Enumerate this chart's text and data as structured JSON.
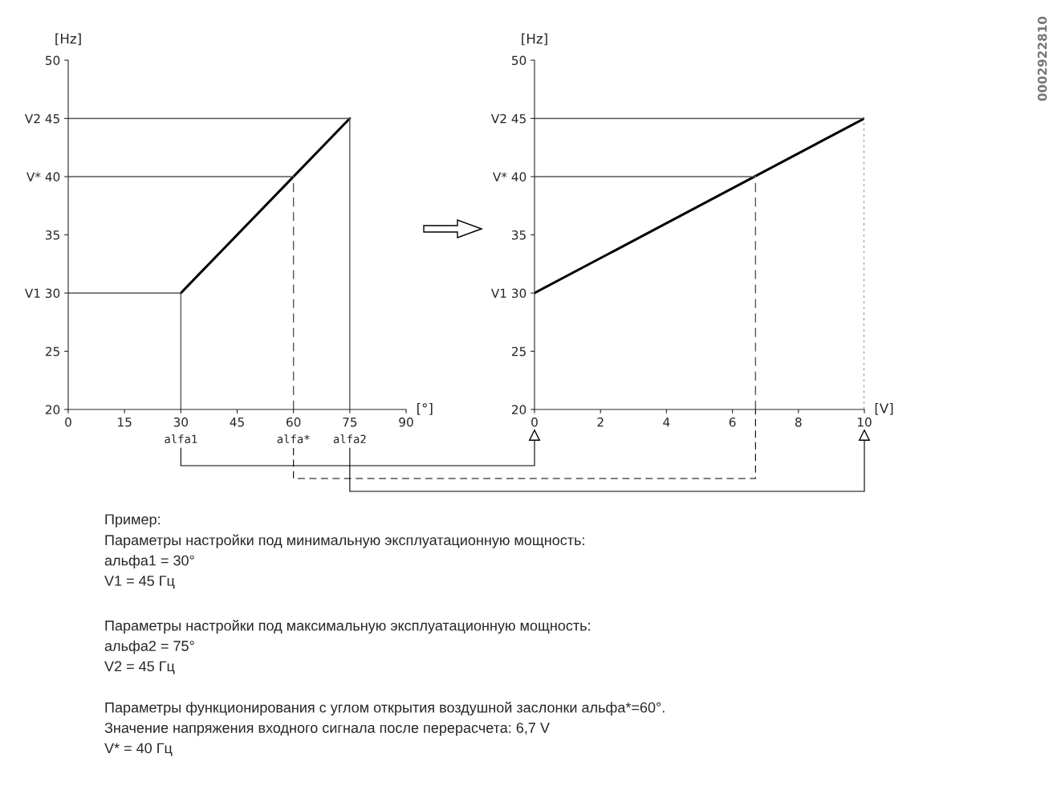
{
  "chart_data": [
    {
      "type": "line",
      "xlabel": "[°]",
      "ylabel": "[Hz]",
      "xlim": [
        0,
        90
      ],
      "ylim": [
        20,
        50
      ],
      "xticks": [
        0,
        15,
        30,
        45,
        60,
        75,
        90
      ],
      "yticks": [
        20,
        25,
        {
          "value": 30,
          "label": "V1 30"
        },
        35,
        {
          "value": 40,
          "label": "V* 40"
        },
        {
          "value": 45,
          "label": "V2 45"
        },
        50
      ],
      "series": [
        {
          "color": "#000000",
          "x": [
            30,
            75
          ],
          "values": [
            30,
            45
          ],
          "line_style": "solid"
        },
        {
          "color": "#555555",
          "x": [
            0,
            75
          ],
          "values": [
            45,
            45
          ],
          "line_style": "solid"
        },
        {
          "color": "#555555",
          "x": [
            0,
            60
          ],
          "values": [
            40,
            40
          ],
          "line_style": "solid"
        },
        {
          "color": "#555555",
          "x": [
            0,
            30
          ],
          "values": [
            30,
            30
          ],
          "line_style": "solid"
        },
        {
          "color": "#555555",
          "x": [
            30,
            30
          ],
          "values": [
            20,
            30
          ],
          "line_style": "solid"
        },
        {
          "color": "#555555",
          "x": [
            60,
            60
          ],
          "values": [
            20,
            40
          ],
          "line_style": "dashed"
        },
        {
          "color": "#555555",
          "x": [
            75,
            75
          ],
          "values": [
            20,
            45
          ],
          "line_style": "solid"
        }
      ],
      "annotations": [
        "alfa1",
        "alfa*",
        "alfa2",
        "Пример:\nПараметры настройки под минимальную эксплуатационную мощность:\nальфа1 = 30°\nV1 = 45 Гц",
        "Параметры настройки под максимальную эксплуатационную мощность:\nальфа2 = 75°\nV2 = 45 Гц",
        "Параметры функционирования с углом открытия воздушной заслонки альфа*=60°.\nЗначение напряжения входного сигнала после перерасчета: 6,7 V\nV* = 40 Гц"
      ]
    },
    {
      "type": "line",
      "xlabel": "[V]",
      "ylabel": "[Hz]",
      "xlim": [
        0,
        10
      ],
      "ylim": [
        20,
        50
      ],
      "xticks": [
        0,
        2,
        4,
        6,
        8,
        10
      ],
      "yticks": [
        20,
        25,
        {
          "value": 30,
          "label": "V1 30"
        },
        35,
        {
          "value": 40,
          "label": "V* 40"
        },
        {
          "value": 45,
          "label": "V2 45"
        },
        50
      ],
      "series": [
        {
          "color": "#000000",
          "x": [
            0,
            10
          ],
          "values": [
            30,
            45
          ],
          "line_style": "solid"
        },
        {
          "color": "#555555",
          "x": [
            0,
            10
          ],
          "values": [
            45,
            45
          ],
          "line_style": "solid"
        },
        {
          "color": "#555555",
          "x": [
            0,
            6.7
          ],
          "values": [
            40,
            40
          ],
          "line_style": "solid"
        },
        {
          "color": "#555555",
          "x": [
            6.7,
            6.7
          ],
          "values": [
            20,
            40
          ],
          "line_style": "dashed"
        },
        {
          "color": "#555555",
          "x": [
            10,
            10
          ],
          "values": [
            20,
            45
          ],
          "line_style": "dotted"
        }
      ],
      "annotations": [
        "0002922810"
      ]
    }
  ]
}
